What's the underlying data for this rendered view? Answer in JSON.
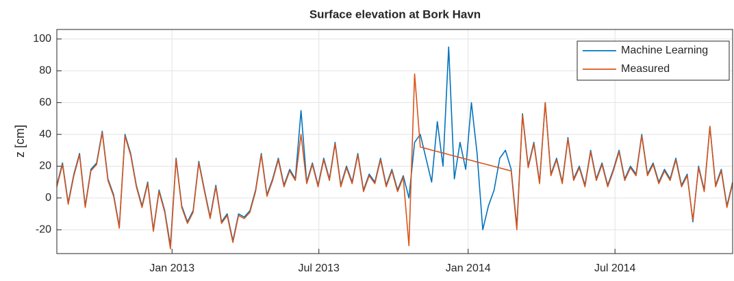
{
  "chart_data": {
    "type": "line",
    "title": "Surface elevation at Bork Havn",
    "y_label": "z [cm]",
    "x": [
      "2012-08-12",
      "2012-08-19",
      "2012-08-26",
      "2012-09-02",
      "2012-09-09",
      "2012-09-16",
      "2012-09-23",
      "2012-09-30",
      "2012-10-07",
      "2012-10-14",
      "2012-10-21",
      "2012-10-28",
      "2012-11-04",
      "2012-11-11",
      "2012-11-18",
      "2012-11-25",
      "2012-12-02",
      "2012-12-09",
      "2012-12-16",
      "2012-12-23",
      "2012-12-30",
      "2013-01-06",
      "2013-01-13",
      "2013-01-20",
      "2013-01-27",
      "2013-02-03",
      "2013-02-10",
      "2013-02-17",
      "2013-02-24",
      "2013-03-03",
      "2013-03-10",
      "2013-03-17",
      "2013-03-24",
      "2013-03-31",
      "2013-04-07",
      "2013-04-14",
      "2013-04-21",
      "2013-04-28",
      "2013-05-05",
      "2013-05-12",
      "2013-05-19",
      "2013-05-26",
      "2013-06-02",
      "2013-06-09",
      "2013-06-16",
      "2013-06-23",
      "2013-06-30",
      "2013-07-07",
      "2013-07-14",
      "2013-07-21",
      "2013-07-28",
      "2013-08-04",
      "2013-08-11",
      "2013-08-18",
      "2013-08-25",
      "2013-09-01",
      "2013-09-08",
      "2013-09-15",
      "2013-09-22",
      "2013-09-29",
      "2013-10-06",
      "2013-10-13",
      "2013-10-20",
      "2013-10-27",
      "2013-11-03",
      "2013-11-10",
      "2013-11-17",
      "2013-11-24",
      "2013-12-01",
      "2013-12-08",
      "2013-12-15",
      "2013-12-22",
      "2013-12-29",
      "2014-01-05",
      "2014-01-12",
      "2014-01-19",
      "2014-01-26",
      "2014-02-02",
      "2014-02-09",
      "2014-02-16",
      "2014-02-23",
      "2014-03-02",
      "2014-03-09",
      "2014-03-16",
      "2014-03-23",
      "2014-03-30",
      "2014-04-06",
      "2014-04-13",
      "2014-04-20",
      "2014-04-27",
      "2014-05-04",
      "2014-05-11",
      "2014-05-18",
      "2014-05-25",
      "2014-06-01",
      "2014-06-08",
      "2014-06-15",
      "2014-06-22",
      "2014-06-29",
      "2014-07-06",
      "2014-07-13",
      "2014-07-20",
      "2014-07-27",
      "2014-08-03",
      "2014-08-10",
      "2014-08-17",
      "2014-08-24",
      "2014-08-31",
      "2014-09-07",
      "2014-09-14",
      "2014-09-21",
      "2014-09-28",
      "2014-10-05",
      "2014-10-12",
      "2014-10-19",
      "2014-10-26",
      "2014-11-02",
      "2014-11-09",
      "2014-11-16",
      "2014-11-23"
    ],
    "series": [
      {
        "name": "Machine Learning",
        "color": "#0072BD",
        "values": [
          8,
          22,
          -3,
          15,
          28,
          -5,
          18,
          22,
          42,
          12,
          2,
          -18,
          40,
          28,
          8,
          -5,
          10,
          -20,
          5,
          -8,
          -30,
          25,
          -5,
          -15,
          -8,
          23,
          5,
          -12,
          8,
          -15,
          -10,
          -27,
          -10,
          -12,
          -8,
          5,
          28,
          2,
          12,
          25,
          8,
          18,
          12,
          55,
          10,
          22,
          8,
          25,
          12,
          35,
          8,
          20,
          10,
          28,
          5,
          15,
          10,
          25,
          8,
          18,
          5,
          14,
          0,
          35,
          40,
          25,
          10,
          48,
          20,
          95,
          12,
          35,
          18,
          60,
          28,
          -20,
          -5,
          5,
          25,
          30,
          18,
          -18,
          53,
          20,
          35,
          10,
          60,
          15,
          25,
          10,
          38,
          12,
          20,
          8,
          30,
          12,
          22,
          8,
          18,
          30,
          12,
          20,
          15,
          40,
          15,
          22,
          10,
          18,
          12,
          25,
          8,
          15,
          -15,
          20,
          5,
          45,
          8,
          18,
          -5,
          10
        ]
      },
      {
        "name": "Measured",
        "color": "#D95319",
        "values": [
          7,
          21,
          -4,
          14,
          27,
          -6,
          17,
          21,
          41,
          11,
          1,
          -19,
          39,
          27,
          7,
          -6,
          9,
          -21,
          4,
          -9,
          -32,
          24,
          -6,
          -16,
          -9,
          22,
          4,
          -13,
          7,
          -16,
          -11,
          -28,
          -11,
          -13,
          -9,
          4,
          27,
          1,
          11,
          24,
          7,
          17,
          11,
          40,
          9,
          21,
          7,
          24,
          11,
          34,
          7,
          19,
          9,
          27,
          4,
          14,
          9,
          24,
          7,
          17,
          4,
          13,
          -30,
          78,
          32,
          31.1,
          30.1,
          29.2,
          28.3,
          27.3,
          26.4,
          25.4,
          24.5,
          23.6,
          22.6,
          21.7,
          20.8,
          19.8,
          18.9,
          17.9,
          17,
          -20,
          52,
          19,
          34,
          9,
          60,
          14,
          24,
          9,
          37,
          11,
          19,
          7,
          29,
          11,
          21,
          7,
          17,
          29,
          11,
          19,
          14,
          39,
          14,
          21,
          9,
          17,
          11,
          24,
          7,
          14,
          -14,
          19,
          4,
          45,
          7,
          17,
          -6,
          9
        ]
      }
    ],
    "xlim": [
      "2012-08-12",
      "2014-11-23"
    ],
    "xticks": [
      {
        "value": "2013-01-01",
        "label": "Jan 2013"
      },
      {
        "value": "2013-07-01",
        "label": "Jul 2013"
      },
      {
        "value": "2014-01-01",
        "label": "Jan 2014"
      },
      {
        "value": "2014-07-01",
        "label": "Jul 2014"
      }
    ],
    "ylim": [
      -35,
      106
    ],
    "yticks": [
      -20,
      0,
      20,
      40,
      60,
      80,
      100
    ],
    "grid": true,
    "legend": "top-right"
  }
}
